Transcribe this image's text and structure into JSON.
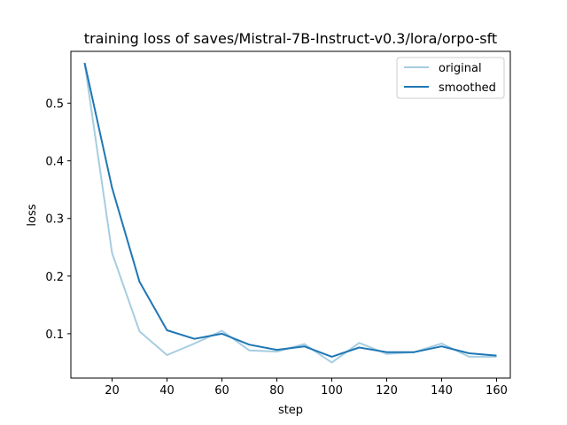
{
  "chart_data": {
    "type": "line",
    "title": "training loss of saves/Mistral-7B-Instruct-v0.3/lora/orpo-sft",
    "xlabel": "step",
    "ylabel": "loss",
    "xlim": [
      5,
      165
    ],
    "ylim": [
      0.023,
      0.59
    ],
    "xticks": [
      20,
      40,
      60,
      80,
      100,
      120,
      140,
      160
    ],
    "yticks": [
      0.1,
      0.2,
      0.3,
      0.4,
      0.5
    ],
    "grid": false,
    "legend_position": "top-right",
    "x": [
      10,
      20,
      30,
      40,
      50,
      60,
      70,
      80,
      90,
      100,
      110,
      120,
      130,
      140,
      150,
      160
    ],
    "series": [
      {
        "name": "original",
        "color": "#a6cde2",
        "values": [
          0.57,
          0.24,
          0.104,
          0.063,
          0.083,
          0.105,
          0.071,
          0.069,
          0.082,
          0.05,
          0.084,
          0.065,
          0.068,
          0.083,
          0.06,
          0.06
        ]
      },
      {
        "name": "smoothed",
        "color": "#1f77b4",
        "values": [
          0.57,
          0.353,
          0.19,
          0.106,
          0.091,
          0.1,
          0.081,
          0.072,
          0.078,
          0.06,
          0.076,
          0.068,
          0.068,
          0.078,
          0.066,
          0.062
        ]
      }
    ]
  }
}
